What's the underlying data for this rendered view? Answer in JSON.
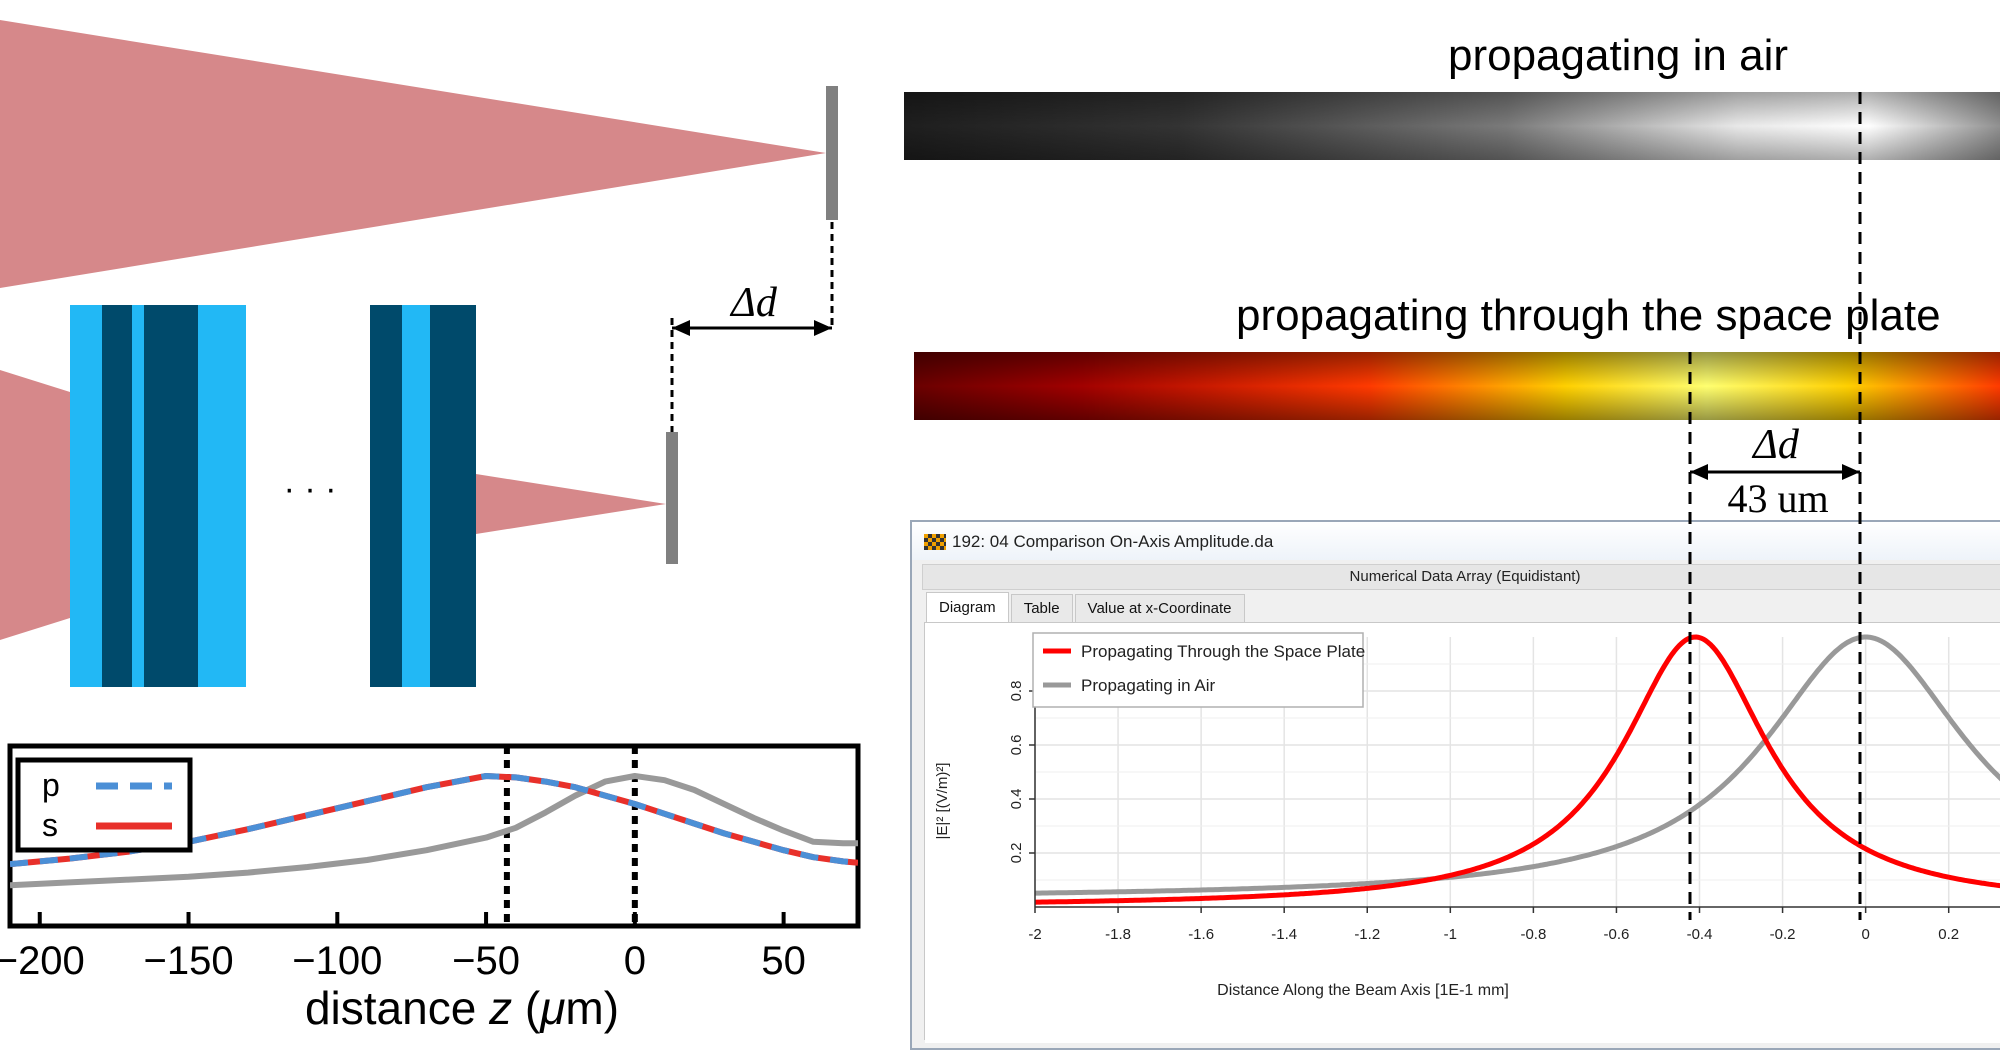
{
  "labels": {
    "air_title": "propagating in air",
    "sp_title": "propagating through the space plate",
    "delta_d": "Δd",
    "shift_value": "43 um",
    "ellipsis": "· · ·"
  },
  "colors": {
    "beam": "#d6888a",
    "layer_light": "#22b8f5",
    "layer_dark": "#004a6b",
    "detector": "#808080",
    "red_curve": "#ff0000",
    "gray_curve": "#999999",
    "p_dash": "#4b8fd6",
    "s_line": "#e8302a"
  },
  "window": {
    "title": "192: 04 Comparison On-Axis Amplitude.da",
    "subtitle": "Numerical Data Array (Equidistant)",
    "tabs": [
      "Diagram",
      "Table",
      "Value at x-Coordinate"
    ]
  },
  "chart_data": [
    {
      "type": "line",
      "title": "",
      "xlabel": "distance z (μm)",
      "ylabel": "",
      "xlim": [
        -210,
        75
      ],
      "ylim": [
        0,
        1
      ],
      "xticks": [
        -200,
        -150,
        -100,
        -50,
        0,
        50
      ],
      "xtick_labels": [
        "−200",
        "−150",
        "−100",
        "−50",
        "0",
        "50"
      ],
      "legend": [
        "p",
        "s"
      ],
      "legend_position": "top-left",
      "vlines": [
        -43,
        0
      ],
      "series": [
        {
          "name": "p",
          "style": "dashed",
          "x": [
            -210,
            -190,
            -170,
            -150,
            -130,
            -110,
            -90,
            -70,
            -50,
            -40,
            -30,
            -20,
            -10,
            0,
            10,
            20,
            30,
            40,
            50,
            60,
            70,
            75
          ],
          "y": [
            0.37,
            0.41,
            0.46,
            0.53,
            0.62,
            0.72,
            0.82,
            0.92,
            1.0,
            0.99,
            0.96,
            0.92,
            0.86,
            0.8,
            0.73,
            0.66,
            0.59,
            0.53,
            0.47,
            0.42,
            0.39,
            0.38
          ]
        },
        {
          "name": "s",
          "style": "solid",
          "x": [
            -210,
            -190,
            -170,
            -150,
            -130,
            -110,
            -90,
            -70,
            -50,
            -40,
            -30,
            -20,
            -10,
            0,
            10,
            20,
            30,
            40,
            50,
            60,
            70,
            75
          ],
          "y": [
            0.37,
            0.41,
            0.46,
            0.53,
            0.62,
            0.72,
            0.82,
            0.92,
            1.0,
            0.99,
            0.96,
            0.92,
            0.86,
            0.8,
            0.73,
            0.66,
            0.59,
            0.53,
            0.47,
            0.42,
            0.39,
            0.38
          ]
        },
        {
          "name": "air",
          "style": "gray",
          "x": [
            -210,
            -190,
            -170,
            -150,
            -130,
            -110,
            -90,
            -70,
            -50,
            -40,
            -30,
            -20,
            -10,
            0,
            10,
            20,
            30,
            40,
            50,
            60,
            70,
            75
          ],
          "y": [
            0.22,
            0.24,
            0.26,
            0.28,
            0.31,
            0.35,
            0.4,
            0.47,
            0.56,
            0.63,
            0.74,
            0.86,
            0.96,
            1.0,
            0.97,
            0.9,
            0.8,
            0.7,
            0.61,
            0.53,
            0.52,
            0.52
          ]
        }
      ]
    },
    {
      "type": "line",
      "title": "",
      "xlabel": "Distance Along the Beam Axis [1E-1 mm]",
      "ylabel": "|E|² [(V/m)²]",
      "xlim": [
        -2,
        0.35
      ],
      "ylim": [
        0,
        1
      ],
      "xticks": [
        -2,
        -1.8,
        -1.6,
        -1.4,
        -1.2,
        -1,
        -0.8,
        -0.6,
        -0.4,
        -0.2,
        0,
        0.2
      ],
      "xtick_labels": [
        "-2",
        "-1.8",
        "-1.6",
        "-1.4",
        "-1.2",
        "-1",
        "-0.8",
        "-0.6",
        "-0.4",
        "-0.2",
        "0",
        "0.2"
      ],
      "yticks": [
        0.2,
        0.4,
        0.6,
        0.8
      ],
      "ytick_labels": [
        "0.2",
        "0.4",
        "0.6",
        "0.8"
      ],
      "legend": [
        "Propagating Through the Space Plate",
        "Propagating in Air"
      ],
      "legend_position": "top-left",
      "series": [
        {
          "name": "Propagating Through the Space Plate",
          "peak": -0.41,
          "halfwidth": 0.215,
          "color": "#ff0000"
        },
        {
          "name": "Propagating in Air",
          "peak": 0.0,
          "halfwidth": 0.3,
          "color": "#999999"
        }
      ]
    }
  ]
}
